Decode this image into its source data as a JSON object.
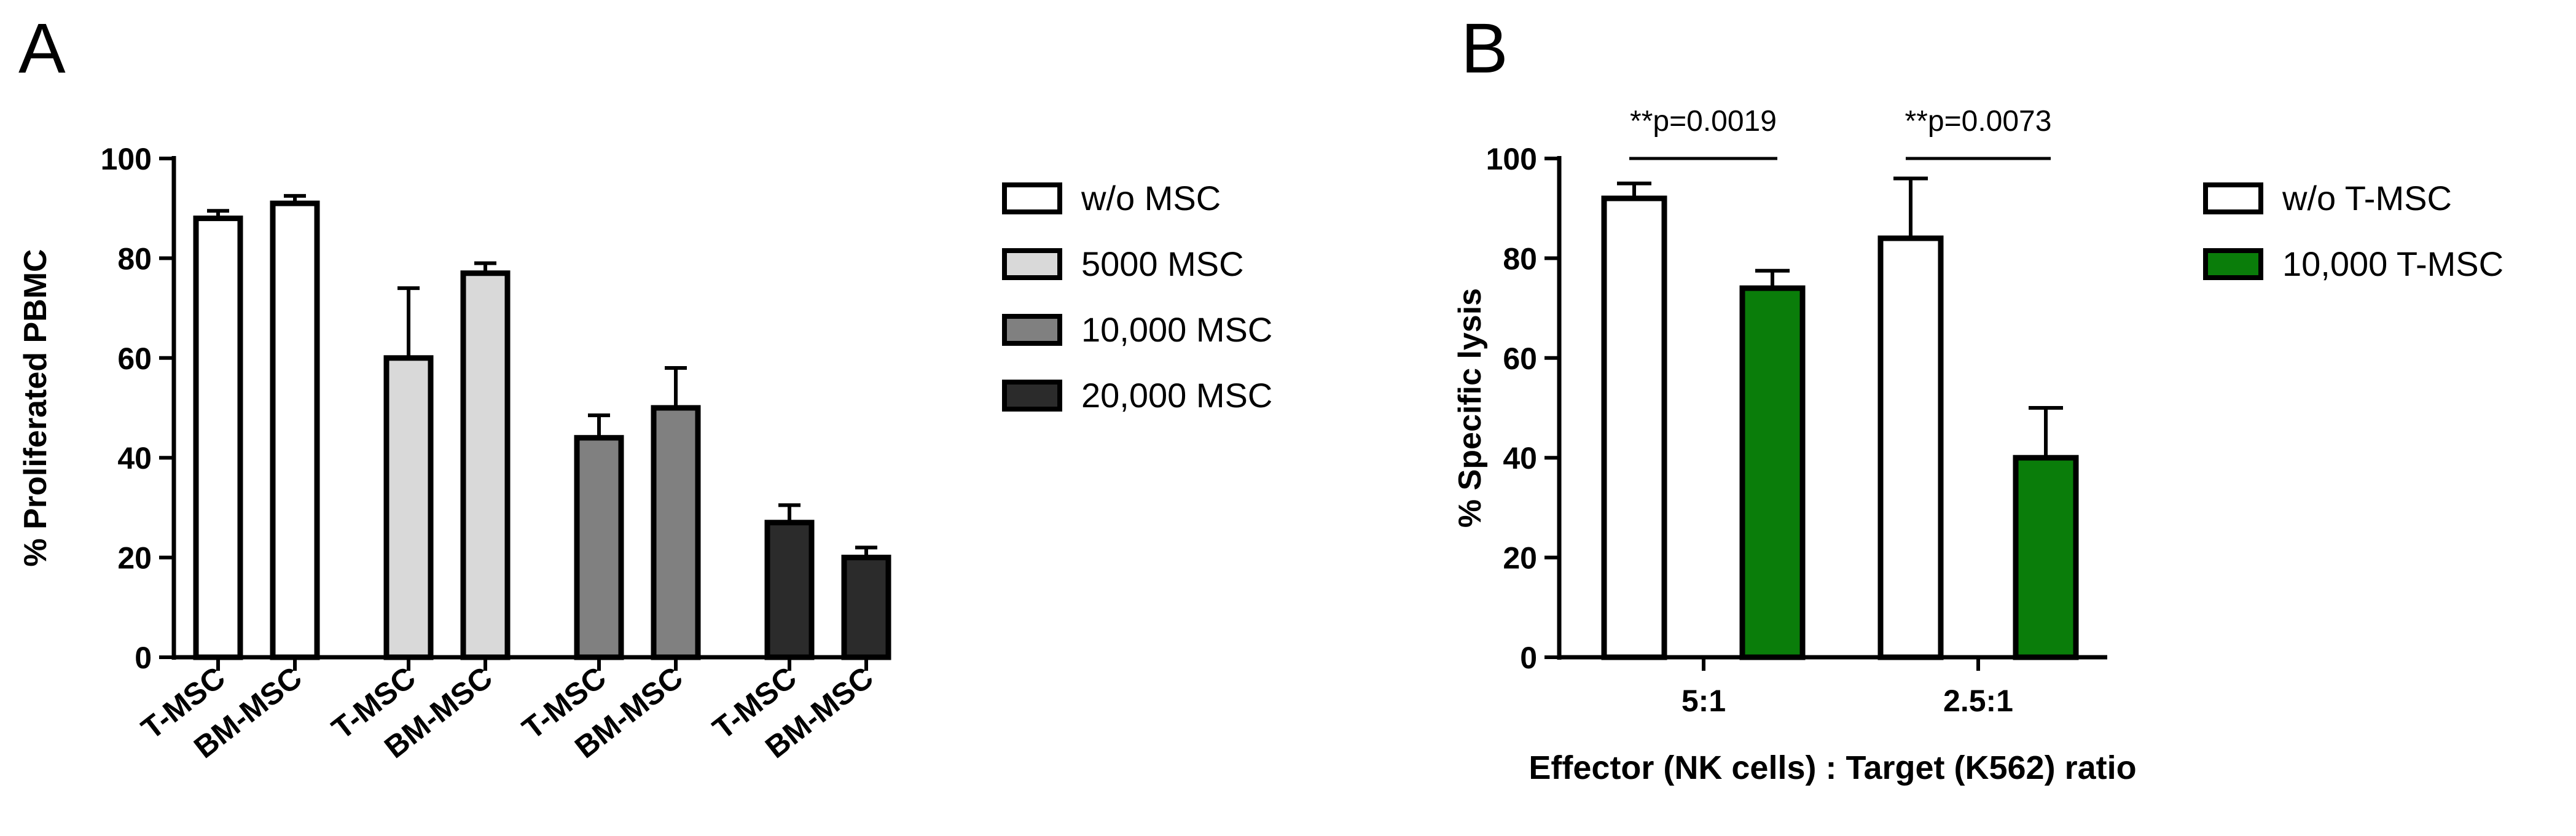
{
  "chart_data": [
    {
      "panel": "A",
      "type": "bar",
      "ylabel": "% Proliferated PBMC",
      "xlabel": "",
      "ylim": [
        0,
        100
      ],
      "yticks": [
        0,
        20,
        40,
        60,
        80,
        100
      ],
      "groups": [
        {
          "name": "w/o MSC",
          "color": "#ffffff",
          "bars": [
            {
              "label": "T-MSC",
              "value": 88,
              "err": 1.5
            },
            {
              "label": "BM-MSC",
              "value": 91,
              "err": 1.5
            }
          ]
        },
        {
          "name": "5000 MSC",
          "color": "#d9d9d9",
          "bars": [
            {
              "label": "T-MSC",
              "value": 60,
              "err": 14
            },
            {
              "label": "BM-MSC",
              "value": 77,
              "err": 2
            }
          ]
        },
        {
          "name": "10,000 MSC",
          "color": "#808080",
          "bars": [
            {
              "label": "T-MSC",
              "value": 44,
              "err": 4.5
            },
            {
              "label": "BM-MSC",
              "value": 50,
              "err": 8
            }
          ]
        },
        {
          "name": "20,000 MSC",
          "color": "#2b2b2b",
          "bars": [
            {
              "label": "T-MSC",
              "value": 27,
              "err": 3.5
            },
            {
              "label": "BM-MSC",
              "value": 20,
              "err": 2
            }
          ]
        }
      ],
      "legend": [
        "w/o MSC",
        "5000 MSC",
        "10,000 MSC",
        "20,000 MSC"
      ]
    },
    {
      "panel": "B",
      "type": "bar",
      "ylabel": "% Specific lysis",
      "xlabel": "Effector (NK cells) : Target (K562) ratio",
      "ylim": [
        0,
        100
      ],
      "yticks": [
        0,
        20,
        40,
        60,
        80,
        100
      ],
      "categories": [
        "5:1",
        "2.5:1"
      ],
      "series": [
        {
          "name": "w/o T-MSC",
          "color": "#ffffff",
          "values": [
            92,
            84
          ],
          "errors": [
            3,
            12
          ]
        },
        {
          "name": "10,000 T-MSC",
          "color": "#0a7d0a",
          "values": [
            74,
            40
          ],
          "errors": [
            3.5,
            10
          ]
        }
      ],
      "annotations": [
        "**p=0.0019",
        "**p=0.0073"
      ],
      "legend": [
        "w/o T-MSC",
        "10,000 T-MSC"
      ]
    }
  ]
}
